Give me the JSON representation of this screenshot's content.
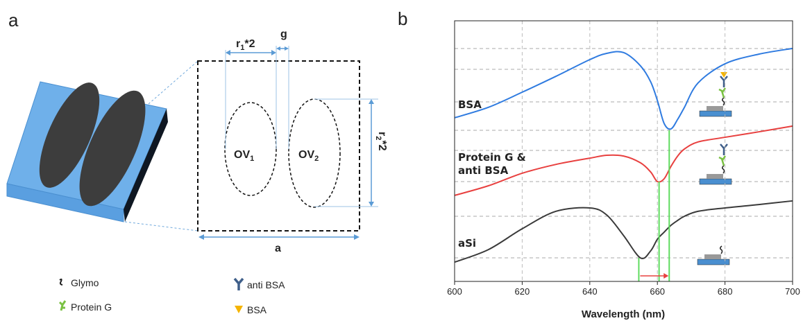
{
  "panel_a": {
    "label": "a",
    "dimensions": [
      {
        "base": "r",
        "sub": "1",
        "rest": "*2"
      },
      {
        "base": "g"
      },
      {
        "base": "r",
        "sub": "2",
        "rest": "*2"
      },
      {
        "base": "a"
      }
    ],
    "shapes": [
      {
        "base": "OV",
        "sub": "1"
      },
      {
        "base": "OV",
        "sub": "2"
      }
    ],
    "legend": [
      "Glymo",
      "Protein G",
      "anti BSA",
      "BSA"
    ]
  },
  "panel_b": {
    "label": "b",
    "chart_data": {
      "type": "line",
      "x_label": "Wavelength (nm)",
      "x": [
        600,
        610,
        620,
        630,
        640,
        645,
        650,
        655,
        658,
        660,
        662,
        664,
        666,
        668,
        672,
        680,
        690,
        700
      ],
      "series": [
        {
          "name": "BSA",
          "color": "#2f7be0",
          "values": [
            6.28,
            6.68,
            7.26,
            7.87,
            8.51,
            8.75,
            8.78,
            8.27,
            7.66,
            6.94,
            6.06,
            5.85,
            6.22,
            6.68,
            7.61,
            8.35,
            8.72,
            8.94
          ]
        },
        {
          "name": "Protein G & anti BSA",
          "color": "#e8403f",
          "values": [
            3.3,
            3.67,
            4.15,
            4.49,
            4.73,
            4.84,
            4.81,
            4.55,
            4.2,
            3.83,
            3.94,
            4.41,
            4.81,
            5.08,
            5.35,
            5.53,
            5.74,
            5.96
          ]
        },
        {
          "name": "aSi",
          "color": "#3a3a3a",
          "values": [
            0.74,
            1.22,
            2.02,
            2.69,
            2.82,
            2.55,
            1.76,
            0.9,
            1.17,
            1.62,
            1.89,
            2.15,
            2.34,
            2.5,
            2.69,
            2.82,
            2.95,
            3.09
          ]
        }
      ],
      "resonance_markers": [
        654.5,
        660.5,
        663.5
      ],
      "marker_color": "#5fdc5f",
      "xlim": [
        600,
        700
      ],
      "ylim": [
        0,
        10
      ],
      "xticks": [
        600,
        620,
        640,
        660,
        680,
        700
      ],
      "grid": true
    }
  }
}
